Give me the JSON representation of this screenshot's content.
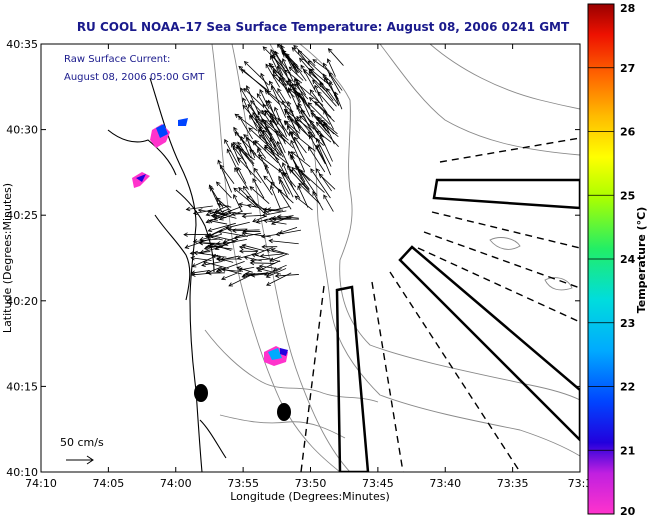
{
  "title": "RU COOL  NOAA–17  Sea Surface Temperature:  August 08, 2006 0241 GMT",
  "current_note": {
    "line1": "Raw Surface Current:",
    "line2": "August 08, 2006 05:00 GMT"
  },
  "scale_label": "50 cm/s",
  "axes": {
    "xlabel": "Longitude (Degrees:Minutes)",
    "ylabel": "Latitude (Degrees:Minutes)",
    "x_ticks": [
      "74:10",
      "74:05",
      "74:00",
      "73:55",
      "73:50",
      "73:45",
      "73:40",
      "73:35",
      "73:3"
    ],
    "y_ticks": [
      "40:35",
      "40:30",
      "40:25",
      "40:20",
      "40:15",
      "40:10"
    ]
  },
  "colorbar": {
    "label": "Temperature (°C)",
    "min": 20,
    "max": 28,
    "ticks": [
      "28",
      "27",
      "26",
      "25",
      "24",
      "23",
      "22",
      "21",
      "20"
    ]
  },
  "colors": {
    "title": "#1a1a8c",
    "contour": "#8a8a8a",
    "coast": "#000000"
  }
}
